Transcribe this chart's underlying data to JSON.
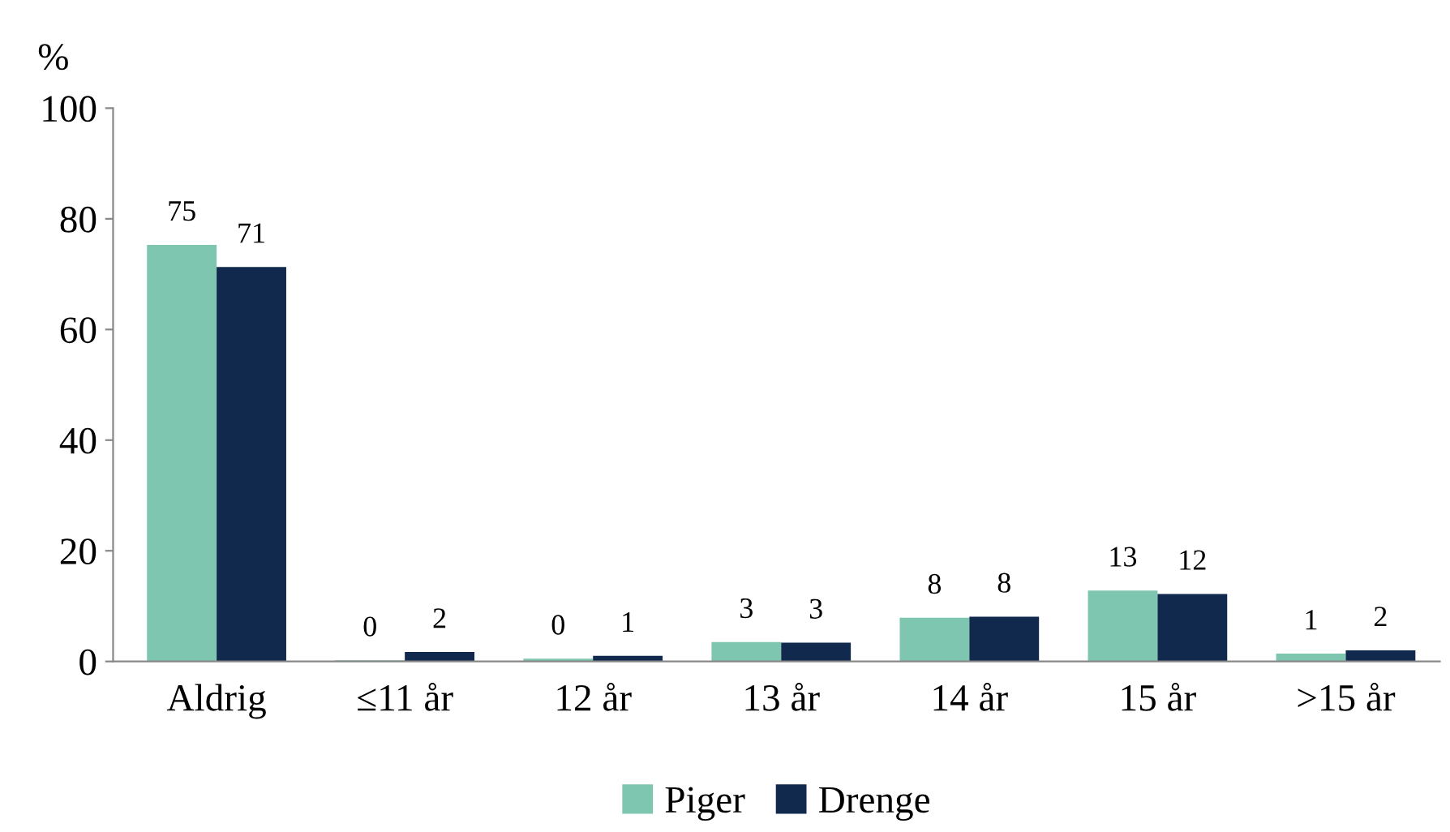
{
  "chart_data": {
    "type": "bar",
    "ylabel": "%",
    "categories": [
      "Aldrig",
      "≤11 år",
      "12 år",
      "13 år",
      "14 år",
      "15 år",
      ">15 år"
    ],
    "series": [
      {
        "name": "Piger",
        "color": "#7fc6b0",
        "values": [
          75.3,
          0.2,
          0.5,
          3.5,
          7.9,
          12.8,
          1.4
        ],
        "value_labels": [
          "75",
          "0",
          "0",
          "3",
          "8",
          "13",
          "1"
        ]
      },
      {
        "name": "Drenge",
        "color": "#11294d",
        "values": [
          71.3,
          1.7,
          1.0,
          3.4,
          8.1,
          12.2,
          2.0
        ],
        "value_labels": [
          "71",
          "2",
          "1",
          "3",
          "8",
          "12",
          "2"
        ]
      }
    ],
    "ylim": [
      0,
      100
    ],
    "yticks": [
      0,
      20,
      40,
      60,
      80,
      100
    ],
    "grid": false,
    "legend": "bottom"
  }
}
